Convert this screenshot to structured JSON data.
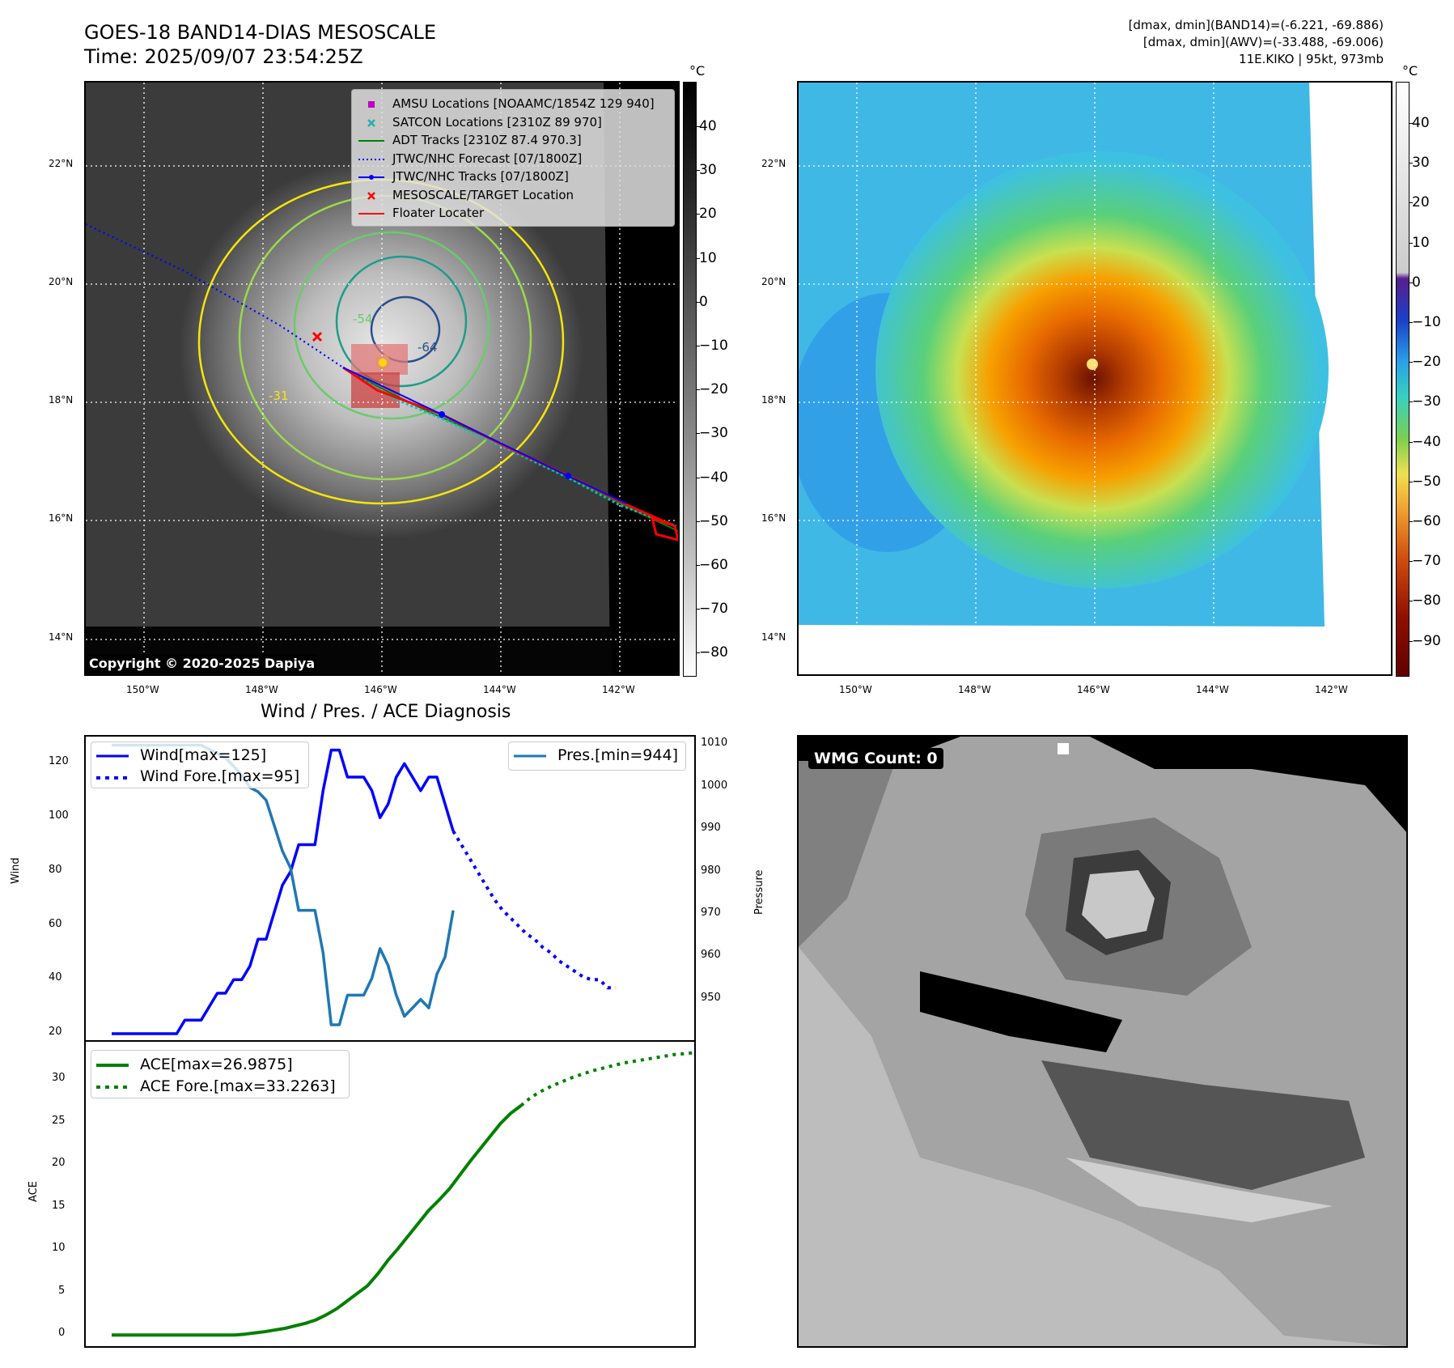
{
  "header": {
    "title": "GOES-18 BAND14-DIAS MESOSCALE",
    "time": "Time: 2025/09/07 23:54:25Z",
    "stats_band14": "[dmax, dmin](BAND14)=(-6.221, -69.886)",
    "stats_awv": "[dmax, dmin](AWV)=(-33.488, -69.006)",
    "storm": "11E.KIKO | 95kt, 973mb"
  },
  "map": {
    "lat_labels": [
      "22°N",
      "20°N",
      "18°N",
      "16°N",
      "14°N"
    ],
    "lon_labels": [
      "150°W",
      "148°W",
      "146°W",
      "144°W",
      "142°W"
    ],
    "copyright": "Copyright © 2020-2025 Dapiya",
    "contour_labels": [
      "-54",
      "-31",
      "-64"
    ],
    "legend": [
      {
        "label": "AMSU Locations [NOAAMC/1854Z 129 940]",
        "color": "#c000c0",
        "kind": "square"
      },
      {
        "label": "SATCON Locations [2310Z 89 970]",
        "color": "#20b2aa",
        "kind": "x"
      },
      {
        "label": "ADT Tracks [2310Z 87.4 970.3]",
        "color": "#008000",
        "kind": "line"
      },
      {
        "label": "JTWC/NHC Forecast [07/1800Z]",
        "color": "#0000ff",
        "kind": "dotted"
      },
      {
        "label": "JTWC/NHC Tracks [07/1800Z]",
        "color": "#0000ff",
        "kind": "line-dot"
      },
      {
        "label": "MESOSCALE/TARGET Location",
        "color": "#ff0000",
        "kind": "x"
      },
      {
        "label": "Floater Locater",
        "color": "#ff0000",
        "kind": "line"
      }
    ]
  },
  "colorbars": {
    "unit": "°C",
    "left_ticks": [
      "40",
      "30",
      "20",
      "10",
      "0",
      "−10",
      "−20",
      "−30",
      "−40",
      "−50",
      "−60",
      "−70",
      "−80"
    ],
    "right_ticks": [
      "40",
      "30",
      "20",
      "10",
      "0",
      "−10",
      "−20",
      "−30",
      "−40",
      "−50",
      "−60",
      "−70",
      "−80",
      "−90"
    ]
  },
  "wmg": {
    "label": "WMG Count: 0"
  },
  "chart_data": [
    {
      "type": "line",
      "title": "Wind / Pres. / ACE Diagnosis",
      "ylabel": "Wind",
      "y2label": "Pressure",
      "ylim": [
        17,
        130
      ],
      "y2lim": [
        940,
        1012
      ],
      "yticks": [
        20,
        40,
        60,
        80,
        100,
        120
      ],
      "y2ticks": [
        950,
        960,
        970,
        980,
        990,
        1000,
        1010
      ],
      "legend_left": [
        "Wind[max=125]",
        "Wind Fore.[max=95]"
      ],
      "legend_right": [
        "Pres.[min=944]"
      ],
      "series": [
        {
          "name": "Wind[max=125]",
          "color": "#0000ff",
          "style": "solid",
          "axis": "left",
          "values": [
            20,
            20,
            20,
            20,
            20,
            20,
            20,
            20,
            20,
            25,
            25,
            25,
            30,
            35,
            35,
            40,
            40,
            45,
            55,
            55,
            65,
            75,
            80,
            90,
            90,
            90,
            110,
            125,
            125,
            115,
            115,
            115,
            110,
            100,
            105,
            115,
            120,
            115,
            110,
            115,
            115,
            105,
            95
          ]
        },
        {
          "name": "Wind Fore.[max=95]",
          "color": "#0000ff",
          "style": "dotted",
          "axis": "left",
          "x_start": 42,
          "values": [
            95,
            90,
            85,
            80,
            75,
            70,
            66,
            63,
            60,
            57,
            55,
            52,
            50,
            47,
            45,
            43,
            41,
            40,
            40,
            37,
            37
          ]
        },
        {
          "name": "Pres.[min=944]",
          "color": "#1f77b4",
          "style": "solid",
          "axis": "left",
          "values": [
            1010,
            1010,
            1010,
            1010,
            1010,
            1010,
            1010,
            1010,
            1010,
            1010,
            1010,
            1010,
            1009,
            1008,
            1007,
            1005,
            1003,
            1000,
            999,
            997,
            991,
            985,
            981,
            971,
            971,
            971,
            961,
            944,
            944,
            951,
            951,
            951,
            955,
            962,
            958,
            951,
            946,
            948,
            950,
            948,
            956,
            960,
            971
          ]
        }
      ]
    },
    {
      "type": "line",
      "ylabel": "ACE",
      "ylim": [
        -1.5,
        34.5
      ],
      "yticks": [
        0,
        5,
        10,
        15,
        20,
        25,
        30
      ],
      "legend": [
        "ACE[max=26.9875]",
        "ACE Fore.[max=33.2263]"
      ],
      "series": [
        {
          "name": "ACE[max=26.9875]",
          "color": "#008000",
          "style": "solid",
          "values": [
            0,
            0,
            0,
            0,
            0,
            0,
            0,
            0,
            0,
            0,
            0,
            0,
            0,
            0.1,
            0.25,
            0.4,
            0.6,
            0.8,
            1.1,
            1.4,
            1.8,
            2.4,
            3.1,
            4.0,
            4.9,
            5.8,
            7.2,
            8.8,
            10.2,
            11.7,
            13.2,
            14.7,
            15.9,
            17.2,
            18.8,
            20.4,
            21.9,
            23.4,
            24.9,
            26.1,
            27.0
          ]
        },
        {
          "name": "ACE Fore.[max=33.2263]",
          "color": "#008000",
          "style": "dotted",
          "x_start": 40,
          "values": [
            27.0,
            28.0,
            28.7,
            29.3,
            29.8,
            30.3,
            30.7,
            31.1,
            31.4,
            31.7,
            32.0,
            32.2,
            32.4,
            32.6,
            32.8,
            33.0,
            33.1,
            33.23
          ]
        }
      ]
    }
  ]
}
